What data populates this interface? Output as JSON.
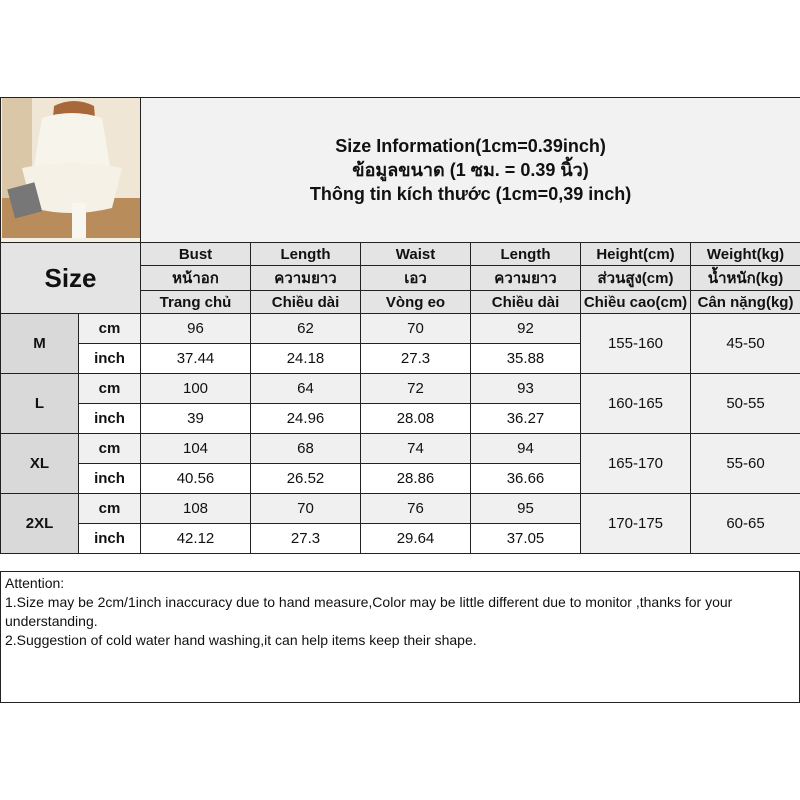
{
  "title": {
    "en": "Size Information(1cm=0.39inch)",
    "th": "ข้อมูลขนาด (1 ซม. = 0.39 นิ้ว)",
    "vi": "Thông tin kích thước (1cm=0,39 inch)"
  },
  "photo": {
    "alt": "woman in cream pajamas sitting with laptop"
  },
  "size_label": "Size",
  "headers": [
    [
      "Bust",
      "Length",
      "Waist",
      "Length",
      "Height(cm)",
      "Weight(kg)"
    ],
    [
      "หน้าอก",
      "ความยาว",
      "เอว",
      "ความยาว",
      "ส่วนสูง(cm)",
      "น้ำหนัก(kg)"
    ],
    [
      "Trang chủ",
      "Chiều dài",
      "Vòng eo",
      "Chiều dài",
      "Chiều cao(cm)",
      "Cân nặng(kg)"
    ]
  ],
  "units": {
    "cm": "cm",
    "inch": "inch"
  },
  "rows": [
    {
      "size": "M",
      "cm": [
        "96",
        "62",
        "70",
        "92"
      ],
      "inch": [
        "37.44",
        "24.18",
        "27.3",
        "35.88"
      ],
      "height": "155-160",
      "weight": "45-50"
    },
    {
      "size": "L",
      "cm": [
        "100",
        "64",
        "72",
        "93"
      ],
      "inch": [
        "39",
        "24.96",
        "28.08",
        "36.27"
      ],
      "height": "160-165",
      "weight": "50-55"
    },
    {
      "size": "XL",
      "cm": [
        "104",
        "68",
        "74",
        "94"
      ],
      "inch": [
        "40.56",
        "26.52",
        "28.86",
        "36.66"
      ],
      "height": "165-170",
      "weight": "55-60"
    },
    {
      "size": "2XL",
      "cm": [
        "108",
        "70",
        "76",
        "95"
      ],
      "inch": [
        "42.12",
        "27.3",
        "29.64",
        "37.05"
      ],
      "height": "170-175",
      "weight": "60-65"
    }
  ],
  "attention": {
    "heading": "Attention:",
    "line1": "1.Size may be 2cm/1inch inaccuracy due to hand measure,Color may be little different due to monitor ,thanks for your understanding.",
    "line2": "2.Suggestion of cold water hand washing,it can help items keep their shape."
  }
}
